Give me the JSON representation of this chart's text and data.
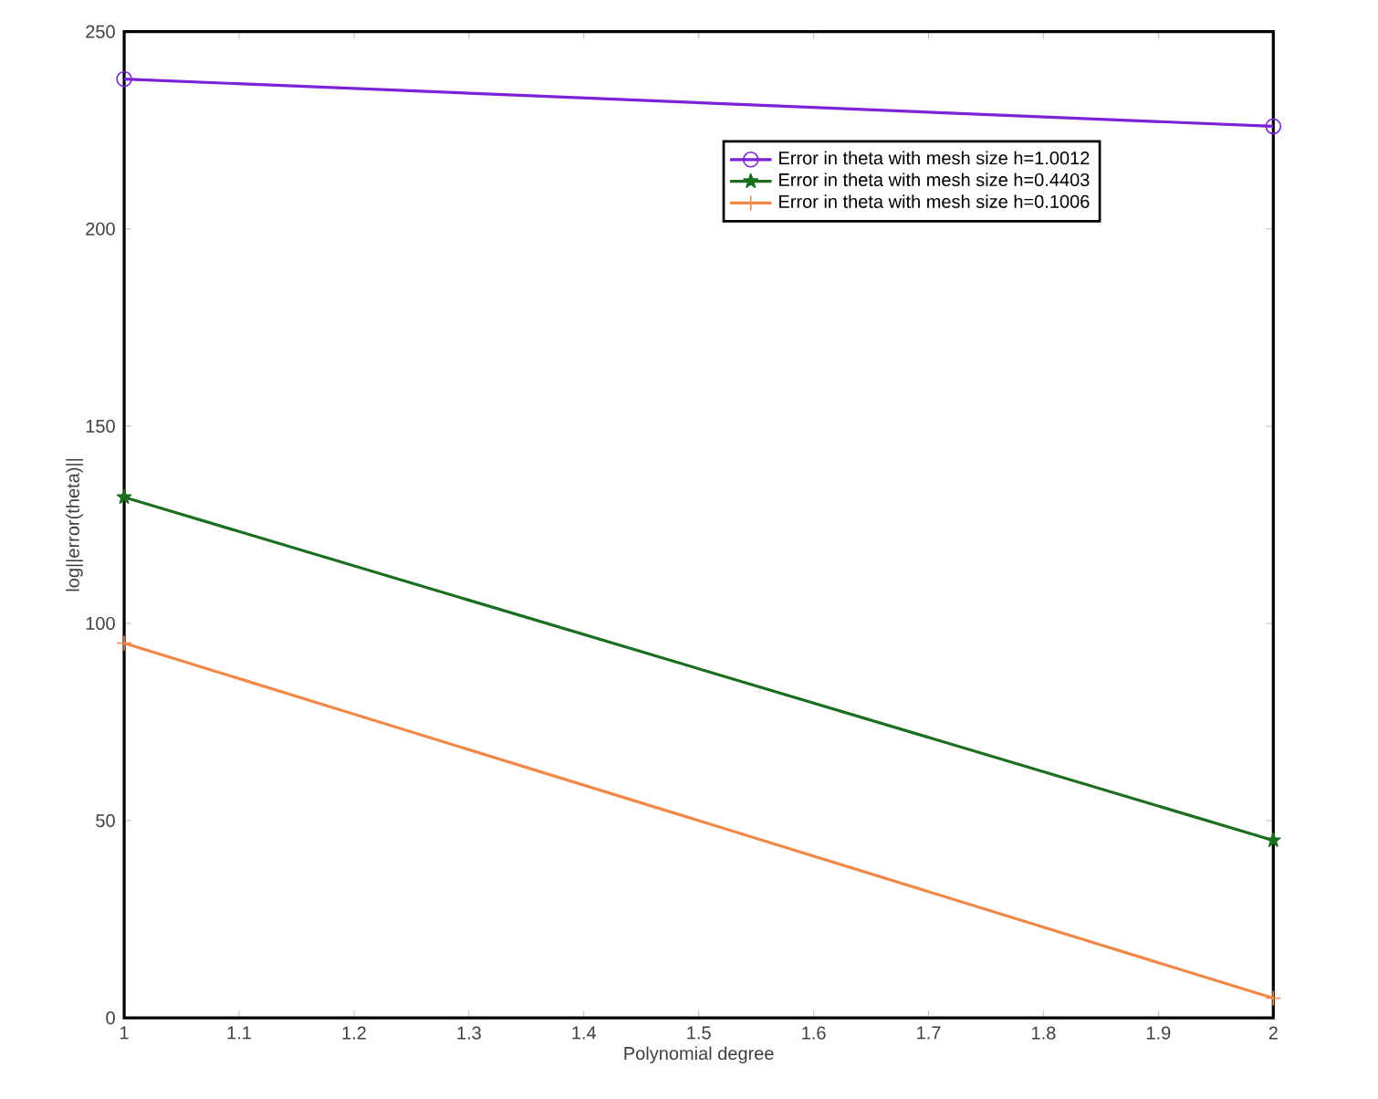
{
  "chart_data": {
    "type": "line",
    "xlabel": "Polynomial degree",
    "ylabel": "log||error(theta)||",
    "x": [
      1,
      2
    ],
    "series": [
      {
        "name": "Error in theta with mesh size h=1.0012",
        "color": "#7b22d8",
        "values": [
          238,
          226
        ],
        "marker": "circle"
      },
      {
        "name": "Error in theta with mesh size h=0.4403",
        "color": "#1b6e1f",
        "values": [
          132,
          45
        ],
        "marker": "star"
      },
      {
        "name": "Error in theta with mesh size h=0.1006",
        "color": "#f0884a",
        "values": [
          95,
          5
        ],
        "marker": "cross"
      }
    ],
    "xlim": [
      1,
      2
    ],
    "xticks": [
      1,
      1.1,
      1.2,
      1.3,
      1.4,
      1.5,
      1.6,
      1.7,
      1.8,
      1.9,
      2
    ],
    "ylim": [
      0,
      250
    ],
    "yticks": [
      0,
      50,
      100,
      150,
      200,
      250
    ],
    "legend": "top right",
    "line_style": "solid"
  }
}
